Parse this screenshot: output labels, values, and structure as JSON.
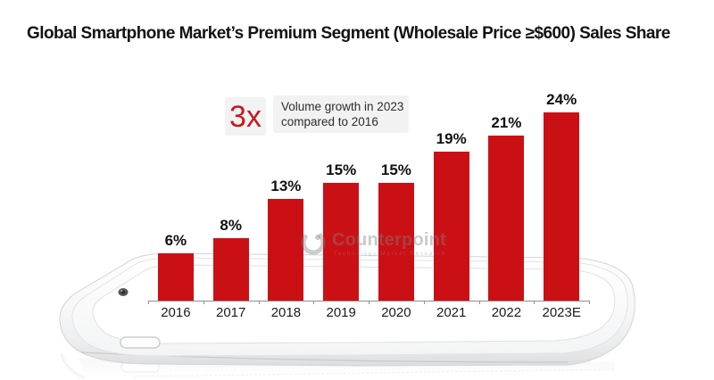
{
  "title": "Global Smartphone Market’s Premium Segment (Wholesale Price ≥$600) Sales Share",
  "annotation": {
    "multiplier": "3x",
    "line1": "Volume growth in 2023",
    "line2": "compared to 2016"
  },
  "watermark": {
    "brand": "Counterpoint",
    "tagline": "Technology Market Research"
  },
  "colors": {
    "bar": "#cb1015",
    "accent_red": "#c41a1f",
    "annotation_bg": "#f2f2f2",
    "axis": "#8f8f8f",
    "title_text": "#121212"
  },
  "chart_data": {
    "type": "bar",
    "title": "Global Smartphone Market’s Premium Segment (Wholesale Price ≥$600) Sales Share",
    "categories": [
      "2016",
      "2017",
      "2018",
      "2019",
      "2020",
      "2021",
      "2022",
      "2023E"
    ],
    "values": [
      6,
      8,
      13,
      15,
      15,
      19,
      21,
      24
    ],
    "labels": [
      "6%",
      "8%",
      "13%",
      "15%",
      "15%",
      "19%",
      "21%",
      "24%"
    ],
    "unit": "%",
    "xlabel": "",
    "ylabel": "",
    "ylim": [
      0,
      26
    ],
    "grid": false,
    "legend": false,
    "bar_color": "#cb1015"
  }
}
